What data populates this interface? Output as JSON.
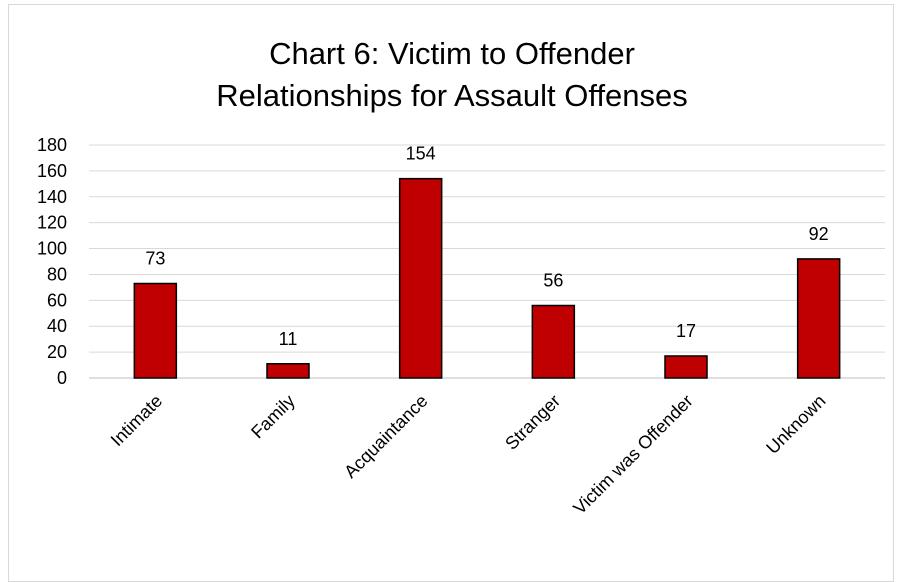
{
  "chart_data": {
    "type": "bar",
    "title_lines": [
      "Chart 6:  Victim to Offender",
      "Relationships for Assault Offenses"
    ],
    "categories": [
      "Intimate",
      "Family",
      "Acquaintance",
      "Stranger",
      "Victim was Offender",
      "Unknown"
    ],
    "values": [
      73,
      11,
      154,
      56,
      17,
      92
    ],
    "data_labels": [
      "73",
      "11",
      "154",
      "56",
      "17",
      "92"
    ],
    "ylim": [
      0,
      180
    ],
    "yticks": [
      0,
      20,
      40,
      60,
      80,
      100,
      120,
      140,
      160,
      180
    ],
    "ytick_labels": [
      "0",
      "20",
      "40",
      "60",
      "80",
      "100",
      "120",
      "140",
      "160",
      "180"
    ],
    "grid": true,
    "legend": "none",
    "bar_color": "#c00000",
    "bar_edge_color": "#000000",
    "xlabel": "",
    "ylabel": ""
  }
}
